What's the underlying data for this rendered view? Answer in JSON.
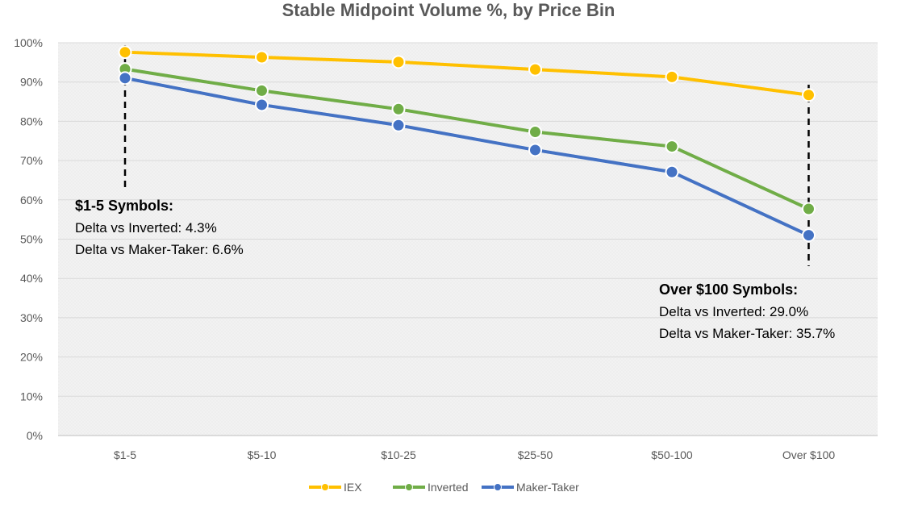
{
  "chart_data": {
    "type": "line",
    "title": "Stable Midpoint Volume %, by Price Bin",
    "xlabel": "",
    "ylabel": "",
    "categories": [
      "$1-5",
      "$5-10",
      "$10-25",
      "$25-50",
      "$50-100",
      "Over $100"
    ],
    "ylim": [
      0,
      100
    ],
    "y_ticks": [
      "0%",
      "10%",
      "20%",
      "30%",
      "40%",
      "50%",
      "60%",
      "70%",
      "80%",
      "90%",
      "100%"
    ],
    "grid": true,
    "legend_position": "bottom",
    "series": [
      {
        "name": "IEX",
        "color": "#FFC000",
        "values": [
          97.6,
          96.3,
          95.1,
          93.2,
          91.3,
          86.7
        ]
      },
      {
        "name": "Inverted",
        "color": "#70AD47",
        "values": [
          93.3,
          87.8,
          83.1,
          77.3,
          73.6,
          57.7
        ]
      },
      {
        "name": "Maker-Taker",
        "color": "#4472C4",
        "values": [
          91.0,
          84.2,
          79.0,
          72.7,
          67.1,
          51.0
        ]
      }
    ],
    "annotations": [
      {
        "category_index": 0,
        "heading": "$1-5 Symbols:",
        "lines": [
          "Delta vs Inverted: 4.3%",
          "Delta vs Maker-Taker: 6.6%"
        ]
      },
      {
        "category_index": 5,
        "heading": "Over $100 Symbols:",
        "lines": [
          "Delta vs Inverted: 29.0%",
          "Delta vs Maker-Taker: 35.7%"
        ]
      }
    ]
  }
}
